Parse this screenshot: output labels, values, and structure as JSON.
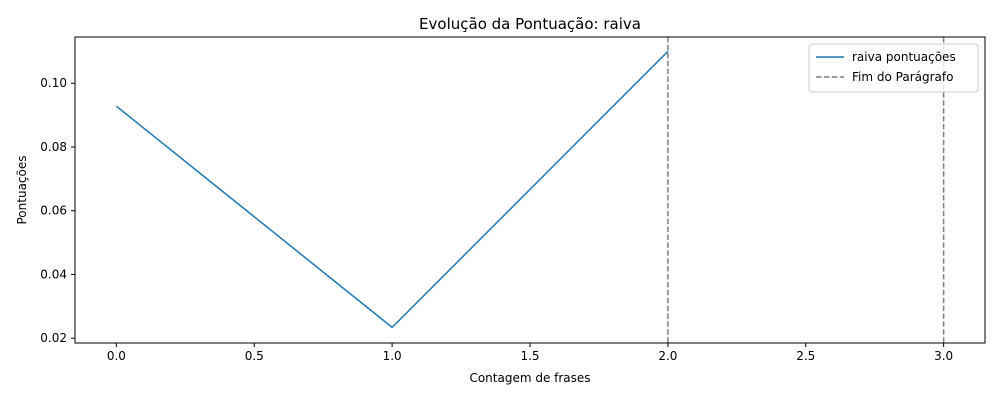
{
  "chart_data": {
    "type": "line",
    "title": "Evolução da Pontuação: raiva",
    "xlabel": "Contagem de frases",
    "ylabel": "Pontuações",
    "xlim": [
      -0.15,
      3.15
    ],
    "ylim": [
      0.0185,
      0.1145
    ],
    "x_ticks": [
      0.0,
      0.5,
      1.0,
      1.5,
      2.0,
      2.5,
      3.0
    ],
    "x_tick_labels": [
      "0.0",
      "0.5",
      "1.0",
      "1.5",
      "2.0",
      "2.5",
      "3.0"
    ],
    "y_ticks": [
      0.02,
      0.04,
      0.06,
      0.08,
      0.1
    ],
    "y_tick_labels": [
      "0.02",
      "0.04",
      "0.06",
      "0.08",
      "0.10"
    ],
    "grid": false,
    "legend_position": "top-right",
    "series": [
      {
        "name": "raiva pontuações",
        "color": "#1f77b4",
        "x": [
          0,
          1,
          2
        ],
        "values": [
          0.0928,
          0.0234,
          0.11
        ]
      }
    ],
    "vlines": {
      "name": "Fim do Parágrafo",
      "color": "#7f7f7f",
      "style": "dashed",
      "x": [
        2,
        3
      ]
    }
  }
}
